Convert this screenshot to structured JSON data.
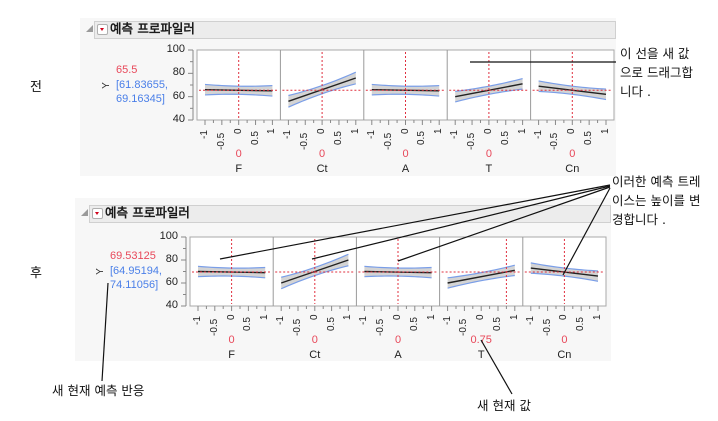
{
  "before": {
    "side_label": "전",
    "panel_title": "예측 프로파일러",
    "response": {
      "name": "Y",
      "value": "65.5",
      "ci_line1": "[61.83655,",
      "ci_line2": "69.16345]"
    },
    "y_axis": {
      "ticks": [
        "100",
        "80",
        "60",
        "40"
      ],
      "min": 40,
      "max": 100
    },
    "factors": [
      {
        "name": "F",
        "current": "0",
        "x_current": 0,
        "y_at_min": 66,
        "y_at_max": 65,
        "band_min": 4.5,
        "band_center": 3.5
      },
      {
        "name": "Ct",
        "current": "0",
        "x_current": 0,
        "y_at_min": 56,
        "y_at_max": 76,
        "band_min": 5,
        "band_center": 3.5
      },
      {
        "name": "A",
        "current": "0",
        "x_current": 0,
        "y_at_min": 66,
        "y_at_max": 65,
        "band_min": 4.5,
        "band_center": 3.5
      },
      {
        "name": "T",
        "current": "0",
        "x_current": 0,
        "y_at_min": 60,
        "y_at_max": 71,
        "band_min": 4.5,
        "band_center": 3.5
      },
      {
        "name": "Cn",
        "current": "0",
        "x_current": 0,
        "y_at_min": 69,
        "y_at_max": 62,
        "band_min": 4.5,
        "band_center": 3.5
      }
    ],
    "x_ticks": [
      "-1",
      "-0.5",
      "0",
      "0.5",
      "1"
    ]
  },
  "after": {
    "side_label": "후",
    "panel_title": "예측 프로파일러",
    "response": {
      "name": "Y",
      "value": "69.53125",
      "ci_line1": "[64.95194,",
      "ci_line2": "74.11056]"
    },
    "y_axis": {
      "ticks": [
        "100",
        "80",
        "60",
        "40"
      ],
      "min": 40,
      "max": 100
    },
    "factors": [
      {
        "name": "F",
        "current": "0",
        "x_current": 0,
        "y_at_min": 70,
        "y_at_max": 69,
        "band_min": 4.5,
        "band_center": 3.5
      },
      {
        "name": "Ct",
        "current": "0",
        "x_current": 0,
        "y_at_min": 60,
        "y_at_max": 80,
        "band_min": 5,
        "band_center": 3.5
      },
      {
        "name": "A",
        "current": "0",
        "x_current": 0,
        "y_at_min": 70,
        "y_at_max": 69,
        "band_min": 4.5,
        "band_center": 3.5
      },
      {
        "name": "T",
        "current": "0.75",
        "x_current": 0.75,
        "y_at_min": 60,
        "y_at_max": 71,
        "band_min": 4.5,
        "band_center": 3.5
      },
      {
        "name": "Cn",
        "current": "0",
        "x_current": 0,
        "y_at_min": 73,
        "y_at_max": 66,
        "band_min": 4.5,
        "band_center": 3.5
      }
    ],
    "x_ticks": [
      "-1",
      "-0.5",
      "0",
      "0.5",
      "1"
    ]
  },
  "annotations": {
    "drag_line": "이 선을 새 값\n으로 드래그합\n니다 .",
    "traces_change": "이러한 예측 트레\n이스는 높이를 변\n경합니다 .",
    "new_response": "새 현재 예측 반응",
    "new_value": "새 현재 값"
  },
  "colors": {
    "trace": "#222222",
    "band_fill": "#d4d4d4",
    "band_edge": "#7a9ee8",
    "ref_line": "#e0303f",
    "response_value": "#e8485a",
    "response_ci": "#4a7fe8",
    "panel_bg": "#f7f7f7",
    "header_bg": "#ececec"
  }
}
